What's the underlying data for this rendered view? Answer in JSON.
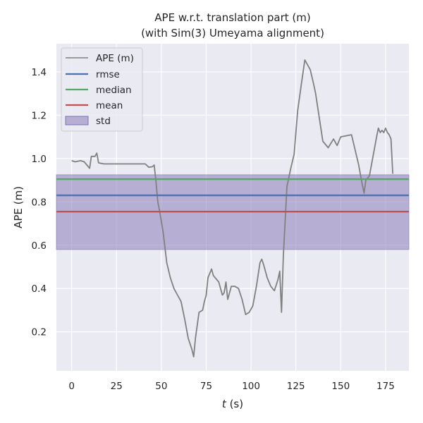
{
  "chart_data": {
    "type": "line",
    "title": "APE w.r.t. translation part (m)",
    "subtitle": "(with Sim(3) Umeyama alignment)",
    "xlabel_italic": "t",
    "xlabel_unit": " (s)",
    "ylabel": "APE (m)",
    "xlim": [
      -8.5,
      188
    ],
    "ylim": [
      0.02,
      1.53
    ],
    "xticks": [
      0,
      25,
      50,
      75,
      100,
      125,
      150,
      175
    ],
    "yticks": [
      0.2,
      0.4,
      0.6,
      0.8,
      1.0,
      1.2,
      1.4
    ],
    "ytick_labels": [
      "0.2",
      "0.4",
      "0.6",
      "0.8",
      "1.0",
      "1.2",
      "1.4"
    ],
    "grid": true,
    "legend_position": "upper-left",
    "stats": {
      "rmse": 0.83,
      "median": 0.905,
      "mean": 0.755,
      "std_band": [
        0.58,
        0.925
      ]
    },
    "series": [
      {
        "name": "APE (m)",
        "color": "#808080",
        "x": [
          0,
          2,
          5,
          7,
          9,
          10,
          11,
          13,
          14,
          15,
          18,
          25,
          35,
          41,
          43,
          45,
          46,
          47,
          48,
          49,
          51,
          53,
          55,
          57,
          59,
          61,
          63,
          65,
          67,
          68,
          69,
          71,
          73,
          74,
          75,
          76,
          78,
          79,
          80,
          82,
          84,
          85,
          86,
          87,
          89,
          91,
          93,
          95,
          97,
          99,
          101,
          103,
          105,
          106,
          107,
          109,
          111,
          113,
          115,
          116,
          117,
          118,
          120,
          122,
          124,
          126,
          128,
          130,
          133,
          135,
          136,
          138,
          140,
          143,
          146,
          148,
          150,
          153,
          156,
          158,
          160,
          162,
          163,
          164,
          166,
          168,
          170,
          171,
          172,
          173,
          174,
          175,
          176,
          177,
          178,
          179
        ],
        "values": [
          0.99,
          0.985,
          0.99,
          0.985,
          0.965,
          0.955,
          1.01,
          1.01,
          1.025,
          0.98,
          0.975,
          0.975,
          0.975,
          0.975,
          0.96,
          0.962,
          0.97,
          0.895,
          0.8,
          0.76,
          0.66,
          0.52,
          0.45,
          0.4,
          0.37,
          0.34,
          0.26,
          0.17,
          0.12,
          0.085,
          0.17,
          0.29,
          0.3,
          0.34,
          0.37,
          0.45,
          0.49,
          0.46,
          0.45,
          0.43,
          0.37,
          0.38,
          0.43,
          0.35,
          0.41,
          0.41,
          0.4,
          0.35,
          0.28,
          0.29,
          0.32,
          0.41,
          0.52,
          0.535,
          0.51,
          0.45,
          0.41,
          0.39,
          0.44,
          0.48,
          0.29,
          0.55,
          0.87,
          0.95,
          1.02,
          1.22,
          1.34,
          1.455,
          1.41,
          1.34,
          1.3,
          1.19,
          1.08,
          1.05,
          1.09,
          1.06,
          1.1,
          1.105,
          1.11,
          1.04,
          0.97,
          0.88,
          0.84,
          0.9,
          0.92,
          1.01,
          1.1,
          1.14,
          1.12,
          1.13,
          1.12,
          1.14,
          1.12,
          1.11,
          1.09,
          0.93
        ]
      },
      {
        "name": "rmse",
        "color": "#4c72b0",
        "value": 0.83
      },
      {
        "name": "median",
        "color": "#55a868",
        "value": 0.905
      },
      {
        "name": "mean",
        "color": "#c44e52",
        "value": 0.755
      },
      {
        "name": "std",
        "color": "#8172b3",
        "band": [
          0.58,
          0.925
        ]
      }
    ]
  }
}
